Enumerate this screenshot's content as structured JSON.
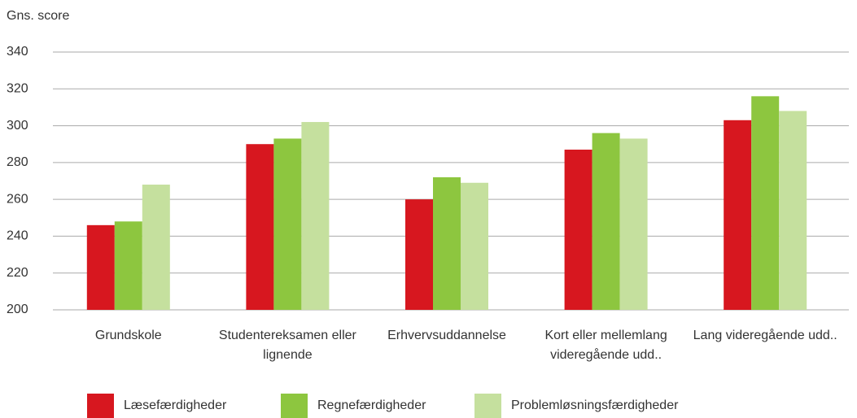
{
  "chart_data": {
    "type": "bar",
    "y_label": "Gns. score",
    "categories": [
      "Grundskole",
      "Studentereksamen eller lignende",
      "Erhvervsuddannelse",
      "Kort eller mellemlang videregående udd..",
      "Lang videregående udd.."
    ],
    "series": [
      {
        "name": "Læsefærdigheder",
        "color": "#d7171f",
        "values": [
          246,
          290,
          260,
          287,
          303
        ]
      },
      {
        "name": "Regnefærdigheder",
        "color": "#8dc63f",
        "values": [
          248,
          293,
          272,
          296,
          316
        ]
      },
      {
        "name": "Problemløsningsfærdigheder",
        "color": "#c5e09e",
        "values": [
          268,
          302,
          269,
          293,
          308
        ]
      }
    ],
    "ylim": [
      200,
      340
    ],
    "yticks": [
      200,
      220,
      240,
      260,
      280,
      300,
      320,
      340
    ],
    "grid": true
  }
}
